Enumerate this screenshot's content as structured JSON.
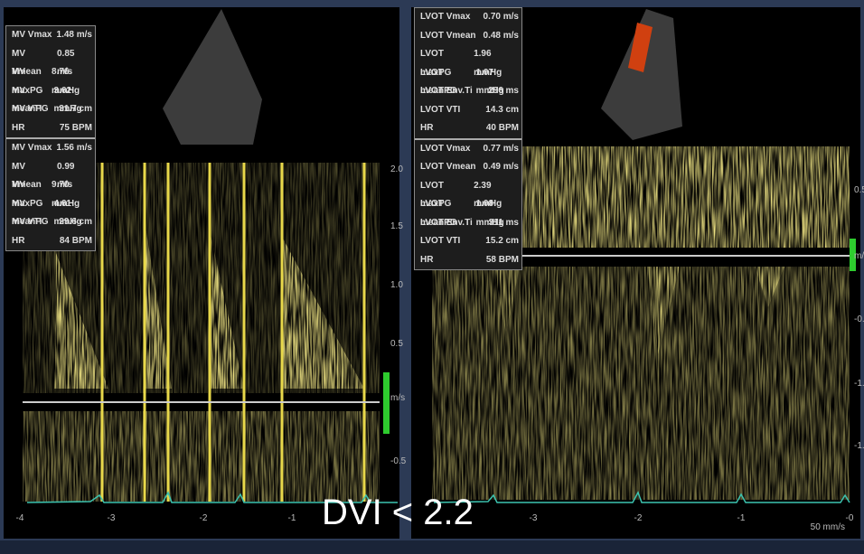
{
  "left_panel": {
    "measurements_1": [
      {
        "label": "MV Vmax",
        "value": "1.48 m/s"
      },
      {
        "label": "MV Vmean",
        "value": "0.85 m/s"
      },
      {
        "label": "MV maxPG",
        "value": "8.76 mmHg"
      },
      {
        "label": "MV meanPG",
        "value": "3.62 mmHg"
      },
      {
        "label": "MV VTI",
        "value": "31.7 cm"
      },
      {
        "label": "HR",
        "value": "75 BPM"
      }
    ],
    "measurements_2": [
      {
        "label": "MV Vmax",
        "value": "1.56 m/s"
      },
      {
        "label": "MV Vmean",
        "value": "0.99 m/s"
      },
      {
        "label": "MV maxPG",
        "value": "9.70 mmHg"
      },
      {
        "label": "MV meanPG",
        "value": "4.61 mmHg"
      },
      {
        "label": "MV VTI",
        "value": "29.6 cm"
      },
      {
        "label": "HR",
        "value": "84 BPM"
      }
    ],
    "scale_labels": [
      "2.0",
      "1.5",
      "1.0",
      "0.5",
      "m/s",
      "-0.5"
    ],
    "time_labels": [
      "-4",
      "-3",
      "-2",
      "-1"
    ]
  },
  "right_panel": {
    "measurements_1": [
      {
        "label": "LVOT Vmax",
        "value": "0.70 m/s"
      },
      {
        "label": "LVOT Vmean",
        "value": "0.48 m/s"
      },
      {
        "label": "LVOT maxPG",
        "value": "1.96 mmHg"
      },
      {
        "label": "LVOT meanPG",
        "value": "1.07 mmHg"
      },
      {
        "label": "LVOT Env.Ti",
        "value": "296 ms"
      },
      {
        "label": "LVOT VTI",
        "value": "14.3 cm"
      },
      {
        "label": "HR",
        "value": "40 BPM"
      }
    ],
    "measurements_2": [
      {
        "label": "LVOT Vmax",
        "value": "0.77 m/s"
      },
      {
        "label": "LVOT Vmean",
        "value": "0.49 m/s"
      },
      {
        "label": "LVOT maxPG",
        "value": "2.39 mmHg"
      },
      {
        "label": "LVOT meanPG",
        "value": "1.08 mmHg"
      },
      {
        "label": "LVOT Env.Ti",
        "value": "311 ms"
      },
      {
        "label": "LVOT VTI",
        "value": "15.2 cm"
      },
      {
        "label": "HR",
        "value": "58 BPM"
      }
    ],
    "scale_labels": [
      "0.5",
      "m/s",
      "-0.",
      "-1.",
      "-1."
    ],
    "time_labels": [
      "-3",
      "-2",
      "-1",
      "-0"
    ],
    "sweep_speed": "50 mm/s"
  },
  "caption": "DVI < 2.2"
}
